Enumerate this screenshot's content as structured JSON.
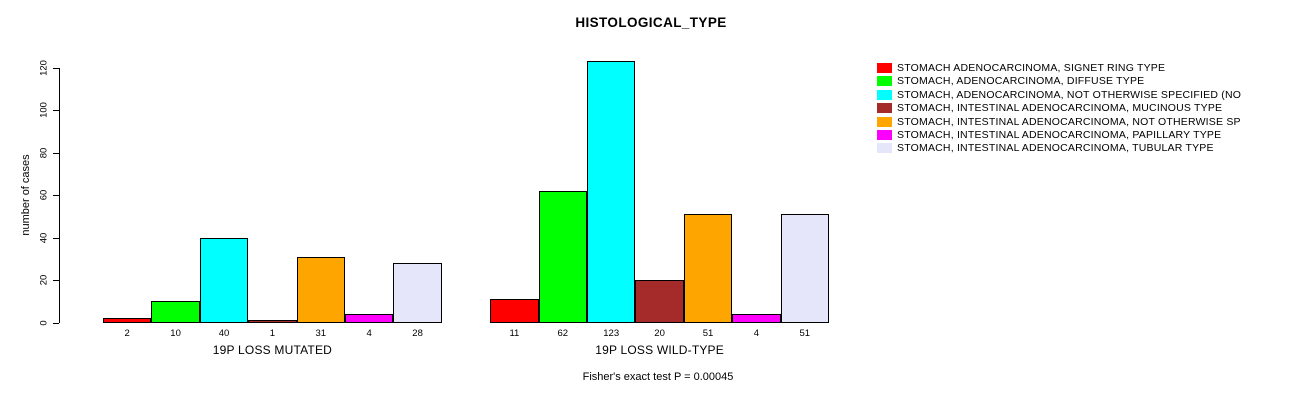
{
  "chart_data": {
    "type": "bar",
    "title": "HISTOLOGICAL_TYPE",
    "ylabel": "number of cases",
    "xlabel": "",
    "ylim": [
      0,
      123
    ],
    "yticks": [
      0,
      20,
      40,
      60,
      80,
      100,
      120
    ],
    "grid": false,
    "legend_position": "right",
    "bar_value_labels_shown": true,
    "categories": [
      "19P LOSS MUTATED",
      "19P LOSS WILD-TYPE"
    ],
    "series": [
      {
        "name": "STOMACH ADENOCARCINOMA, SIGNET RING TYPE",
        "color": "#FF0000",
        "values": [
          2,
          11
        ]
      },
      {
        "name": "STOMACH, ADENOCARCINOMA, DIFFUSE TYPE",
        "color": "#00FF00",
        "values": [
          10,
          62
        ]
      },
      {
        "name": "STOMACH, ADENOCARCINOMA, NOT OTHERWISE SPECIFIED (NO",
        "color": "#00FFFF",
        "values": [
          40,
          123
        ]
      },
      {
        "name": "STOMACH, INTESTINAL ADENOCARCINOMA, MUCINOUS TYPE",
        "color": "#A52A2A",
        "values": [
          1,
          20
        ]
      },
      {
        "name": "STOMACH, INTESTINAL ADENOCARCINOMA, NOT OTHERWISE SP",
        "color": "#FFA500",
        "values": [
          31,
          51
        ]
      },
      {
        "name": "STOMACH, INTESTINAL ADENOCARCINOMA, PAPILLARY TYPE",
        "color": "#FF00FF",
        "values": [
          4,
          4
        ]
      },
      {
        "name": "STOMACH, INTESTINAL ADENOCARCINOMA, TUBULAR TYPE",
        "color": "#E6E6FA",
        "values": [
          28,
          51
        ]
      }
    ],
    "annotation": "Fisher's exact test P = 0.00045"
  }
}
